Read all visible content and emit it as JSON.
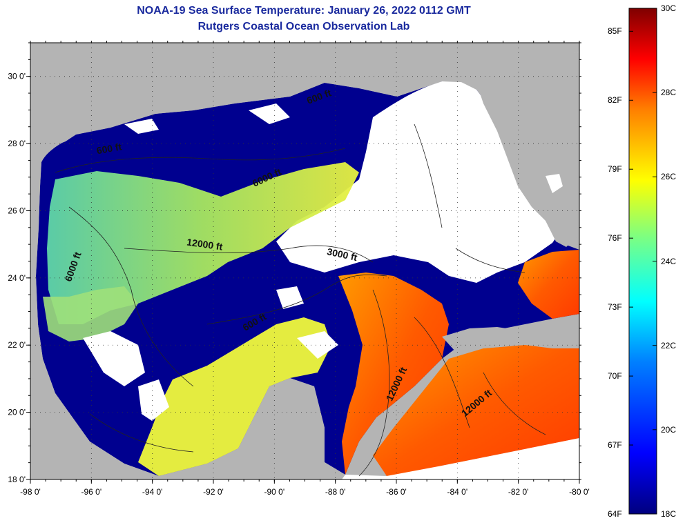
{
  "title": "NOAA-19 Sea Surface Temperature:  January 26, 2022 0112 GMT",
  "subtitle": "Rutgers Coastal Ocean Observation Lab",
  "map": {
    "lon_range": [
      -98,
      -80
    ],
    "lat_range": [
      18,
      31
    ],
    "x_ticks": [
      "-98 0'",
      "-96 0'",
      "-94 0'",
      "-92 0'",
      "-90 0'",
      "-88 0'",
      "-86 0'",
      "-84 0'",
      "-82 0'",
      "-80 0'"
    ],
    "y_ticks": [
      "18 0'",
      "20 0'",
      "22 0'",
      "24 0'",
      "26 0'",
      "28 0'",
      "30 0'"
    ],
    "land_color": "#b4b4b4",
    "cloud_color": "#ffffff",
    "contour_labels": [
      {
        "text": "600 ft",
        "lon": -95.4,
        "lat": 27.75,
        "angle": -10
      },
      {
        "text": "6000 ft",
        "lon": -90.2,
        "lat": 26.9,
        "angle": -25
      },
      {
        "text": "12000 ft",
        "lon": -92.3,
        "lat": 24.9,
        "angle": 8
      },
      {
        "text": "6000 ft",
        "lon": -96.5,
        "lat": 24.3,
        "angle": -70
      },
      {
        "text": "600 ft",
        "lon": -90.6,
        "lat": 22.6,
        "angle": -30
      },
      {
        "text": "3000 ft",
        "lon": -87.8,
        "lat": 24.6,
        "angle": 12
      },
      {
        "text": "12000 ft",
        "lon": -85.9,
        "lat": 20.8,
        "angle": -65
      },
      {
        "text": "12000 ft",
        "lon": -83.3,
        "lat": 20.2,
        "angle": -40
      },
      {
        "text": "600 ft",
        "lon": -88.5,
        "lat": 29.3,
        "angle": -20
      }
    ]
  },
  "colorbar": {
    "fahrenheit_labels": [
      "85F",
      "82F",
      "79F",
      "76F",
      "73F",
      "70F",
      "67F",
      "64F"
    ],
    "celsius_labels": [
      "30C",
      "28C",
      "26C",
      "24C",
      "22C",
      "20C",
      "18C"
    ],
    "colors": [
      "#00007f",
      "#0000ff",
      "#007fff",
      "#00ffff",
      "#7fff7f",
      "#ffff00",
      "#ff7f00",
      "#ff0000",
      "#7f0000"
    ]
  }
}
